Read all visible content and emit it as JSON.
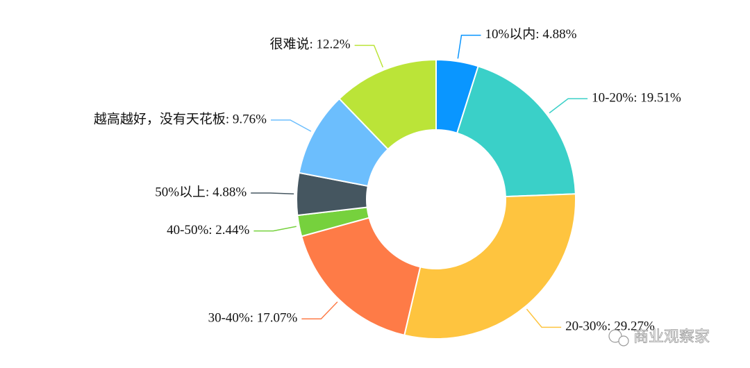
{
  "chart_data": {
    "type": "donut",
    "labels": [
      "10%以内: 4.88%",
      "10-20%: 19.51%",
      "20-30%: 29.27%",
      "30-40%: 17.07%",
      "40-50%: 2.44%",
      "50%以上: 4.88%",
      "越高越好，没有天花板: 9.76%",
      "很难说: 12.2%"
    ],
    "values": [
      4.88,
      19.51,
      29.27,
      17.07,
      2.44,
      4.88,
      9.76,
      12.2
    ],
    "colors": [
      "#0a96ff",
      "#3ad0c8",
      "#fec43f",
      "#fe7b47",
      "#76d13d",
      "#455660",
      "#6cbefd",
      "#bbe438"
    ]
  },
  "watermark": "商业观察家"
}
